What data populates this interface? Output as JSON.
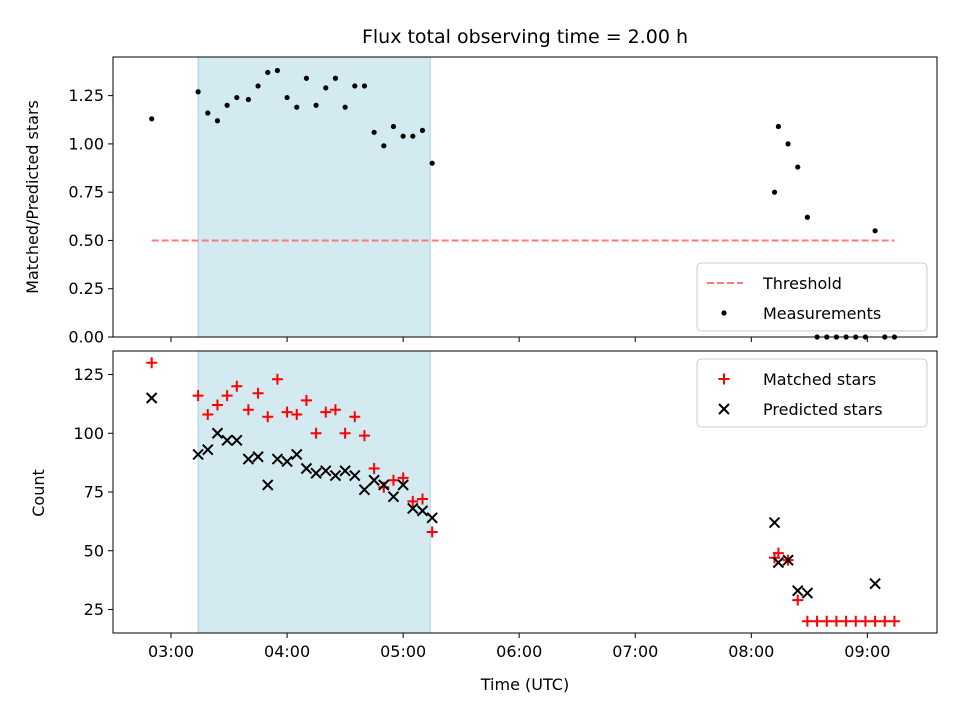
{
  "chart_data": [
    {
      "type": "scatter",
      "title": "Flux total observing time = 2.00 h",
      "xlabel": "",
      "ylabel": "Matched/Predicted stars",
      "xlim": [
        "02:30",
        "09:36"
      ],
      "ylim": [
        0.0,
        1.45
      ],
      "yticks": [
        "0.00",
        "0.25",
        "0.50",
        "0.75",
        "1.00",
        "1.25"
      ],
      "shaded_interval": [
        "03:14",
        "05:14"
      ],
      "shade_color": "#d3eaf1",
      "grid": false,
      "legend_position": "lower-right",
      "series": [
        {
          "name": "Threshold",
          "style": "dashed-line",
          "color": "#ff7b7b",
          "x": [
            "02:50",
            "09:14"
          ],
          "y": [
            0.5,
            0.5
          ]
        },
        {
          "name": "Measurements",
          "style": "dot",
          "color": "#000000",
          "x": [
            "02:50",
            "03:14",
            "03:19",
            "03:24",
            "03:29",
            "03:34",
            "03:40",
            "03:45",
            "03:50",
            "03:55",
            "04:00",
            "04:05",
            "04:10",
            "04:15",
            "04:20",
            "04:25",
            "04:30",
            "04:35",
            "04:40",
            "04:45",
            "04:50",
            "04:55",
            "05:00",
            "05:05",
            "05:10",
            "05:15",
            "08:12",
            "08:14",
            "08:19",
            "08:24",
            "08:29",
            "08:34",
            "08:39",
            "08:44",
            "08:49",
            "08:54",
            "08:59",
            "09:04",
            "09:09",
            "09:14"
          ],
          "y": [
            1.13,
            1.27,
            1.16,
            1.12,
            1.2,
            1.24,
            1.23,
            1.3,
            1.37,
            1.38,
            1.24,
            1.19,
            1.34,
            1.2,
            1.29,
            1.34,
            1.19,
            1.3,
            1.3,
            1.06,
            0.99,
            1.09,
            1.04,
            1.04,
            1.07,
            0.9,
            0.75,
            1.09,
            1.0,
            0.88,
            0.62,
            0.0,
            0.0,
            0.0,
            0.0,
            0.0,
            0.0,
            0.55,
            0.0,
            0.0
          ]
        }
      ]
    },
    {
      "type": "scatter",
      "title": "",
      "xlabel": "Time (UTC)",
      "ylabel": "Count",
      "xlim": [
        "02:30",
        "09:36"
      ],
      "ylim": [
        15,
        135
      ],
      "yticks": [
        "25",
        "50",
        "75",
        "100",
        "125"
      ],
      "xticks": [
        "03:00",
        "04:00",
        "05:00",
        "06:00",
        "07:00",
        "08:00",
        "09:00"
      ],
      "shaded_interval": [
        "03:14",
        "05:14"
      ],
      "shade_color": "#d3eaf1",
      "grid": false,
      "legend_position": "upper-right",
      "series": [
        {
          "name": "Matched stars",
          "style": "plus",
          "color": "#ff0000",
          "x": [
            "02:50",
            "03:14",
            "03:19",
            "03:24",
            "03:29",
            "03:34",
            "03:40",
            "03:45",
            "03:50",
            "03:55",
            "04:00",
            "04:05",
            "04:10",
            "04:15",
            "04:20",
            "04:25",
            "04:30",
            "04:35",
            "04:40",
            "04:45",
            "04:50",
            "04:55",
            "05:00",
            "05:05",
            "05:10",
            "05:15",
            "08:12",
            "08:14",
            "08:19",
            "08:24",
            "08:29",
            "08:34",
            "08:39",
            "08:44",
            "08:49",
            "08:54",
            "08:59",
            "09:04",
            "09:09",
            "09:14"
          ],
          "y": [
            130,
            116,
            108,
            112,
            116,
            120,
            110,
            117,
            107,
            123,
            109,
            108,
            114,
            100,
            109,
            110,
            100,
            107,
            99,
            85,
            77,
            80,
            81,
            71,
            72,
            58,
            47,
            49,
            46,
            29,
            20,
            20,
            20,
            20,
            20,
            20,
            20,
            20,
            20,
            20
          ]
        },
        {
          "name": "Predicted stars",
          "style": "x",
          "color": "#000000",
          "x": [
            "02:50",
            "03:14",
            "03:19",
            "03:24",
            "03:29",
            "03:34",
            "03:40",
            "03:45",
            "03:50",
            "03:55",
            "04:00",
            "04:05",
            "04:10",
            "04:15",
            "04:20",
            "04:25",
            "04:30",
            "04:35",
            "04:40",
            "04:45",
            "04:50",
            "04:55",
            "05:00",
            "05:05",
            "05:10",
            "05:15",
            "08:12",
            "08:14",
            "08:19",
            "08:24",
            "08:29",
            "09:04"
          ],
          "y": [
            115,
            91,
            93,
            100,
            97,
            97,
            89,
            90,
            78,
            89,
            88,
            91,
            85,
            83,
            84,
            82,
            84,
            82,
            76,
            80,
            78,
            73,
            78,
            68,
            67,
            64,
            62,
            45,
            46,
            33,
            32,
            36
          ]
        }
      ]
    }
  ]
}
